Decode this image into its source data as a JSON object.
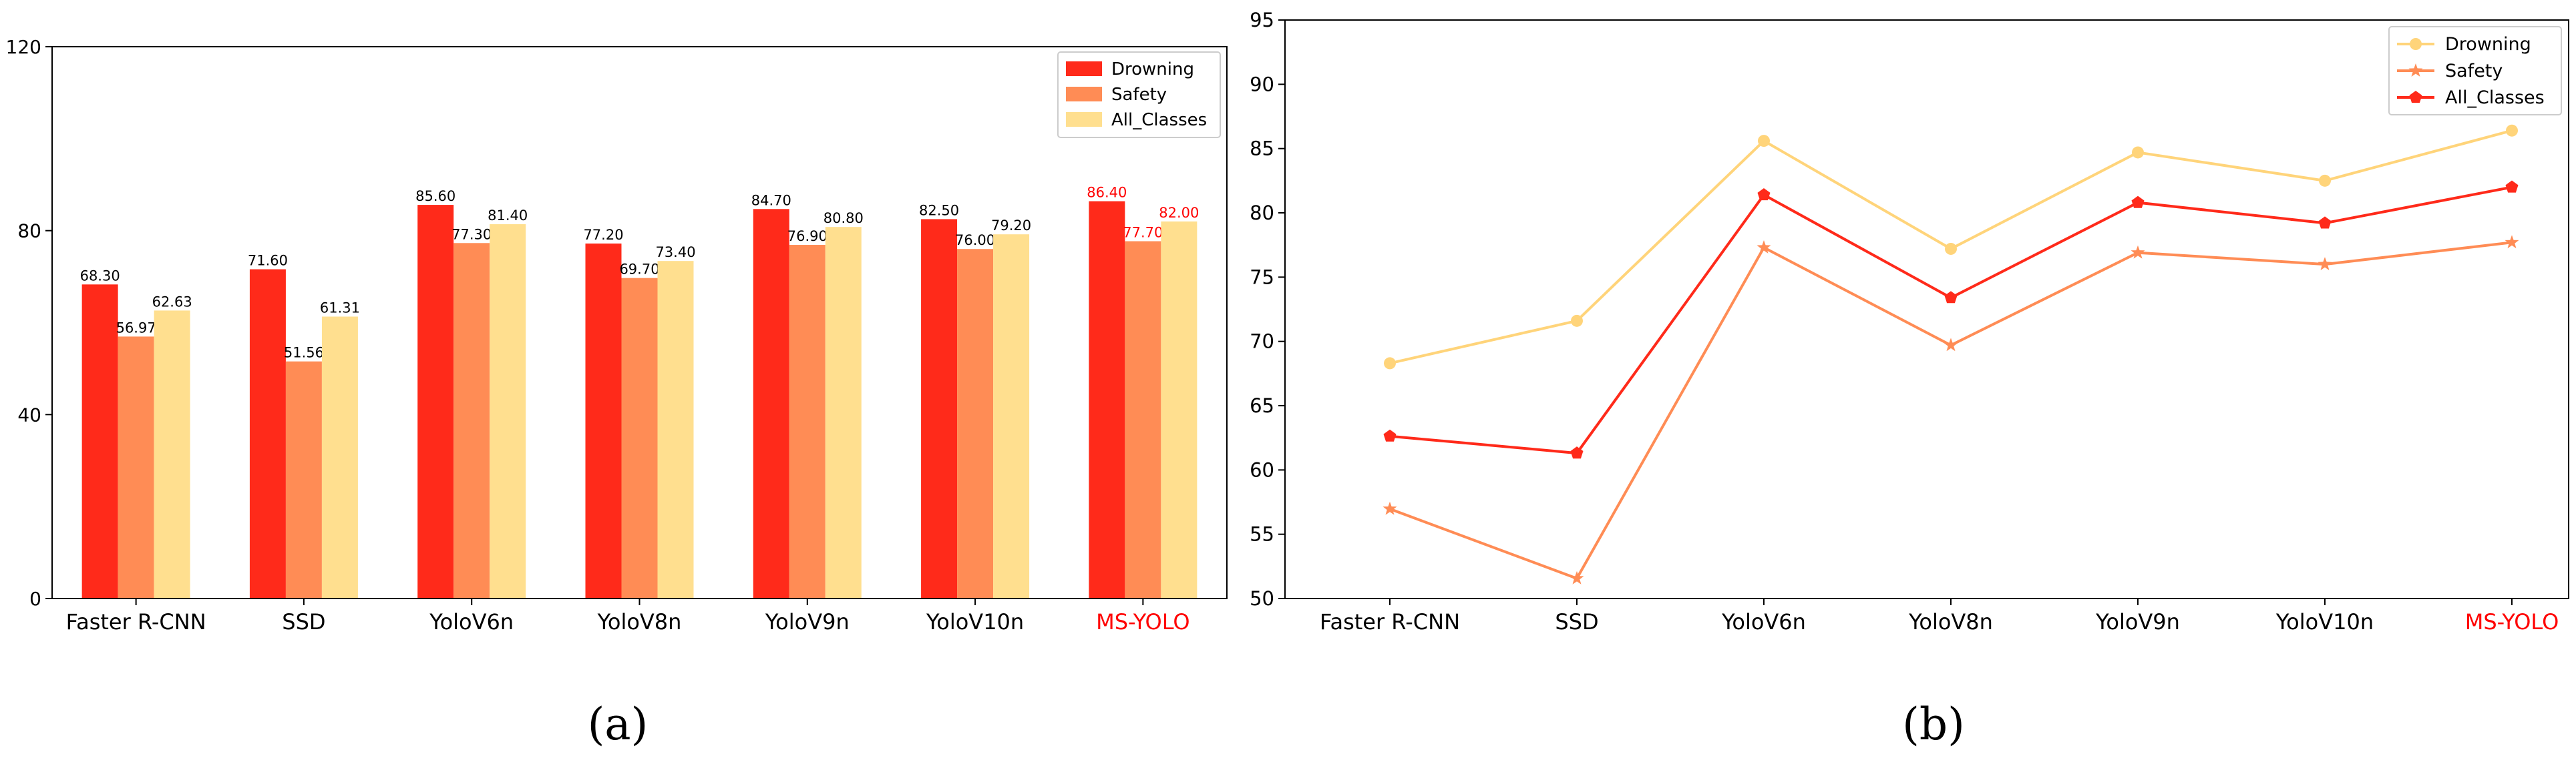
{
  "figure": {
    "panel_labels": [
      "(a)",
      "(b)"
    ],
    "highlight_color": "#ff0000"
  },
  "chart_data": [
    {
      "type": "bar",
      "title": "",
      "xlabel": "",
      "ylabel": "",
      "categories": [
        "Faster R-CNN",
        "SSD",
        "YoloV6n",
        "YoloV8n",
        "YoloV9n",
        "YoloV10n",
        "MS-YOLO"
      ],
      "highlight_category": "MS-YOLO",
      "ylim": [
        0,
        120
      ],
      "yticks": [
        0,
        40,
        80,
        120
      ],
      "grid": false,
      "legend": "top-right",
      "series": [
        {
          "name": "Drowning",
          "color": "#ff2a1a",
          "values": [
            68.3,
            71.6,
            85.6,
            77.2,
            84.7,
            82.5,
            86.4
          ],
          "labels": [
            "68.30",
            "71.60",
            "85.60",
            "77.20",
            "84.70",
            "82.50",
            "86.40"
          ]
        },
        {
          "name": "Safety",
          "color": "#ff8c55",
          "values": [
            56.97,
            51.56,
            77.3,
            69.7,
            76.9,
            76.0,
            77.7
          ],
          "labels": [
            "56.97",
            "51.56",
            "77.30",
            "69.70",
            "76.90",
            "76.00",
            "77.70"
          ]
        },
        {
          "name": "All_Classes",
          "color": "#ffdf8f",
          "values": [
            62.63,
            61.31,
            81.4,
            73.4,
            80.8,
            79.2,
            82.0
          ],
          "labels": [
            "62.63",
            "61.31",
            "81.40",
            "73.40",
            "80.80",
            "79.20",
            "82.00"
          ]
        }
      ]
    },
    {
      "type": "line",
      "title": "",
      "xlabel": "",
      "ylabel": "",
      "categories": [
        "Faster R-CNN",
        "SSD",
        "YoloV6n",
        "YoloV8n",
        "YoloV9n",
        "YoloV10n",
        "MS-YOLO"
      ],
      "highlight_category": "MS-YOLO",
      "ylim": [
        50,
        95
      ],
      "yticks": [
        50,
        55,
        60,
        65,
        70,
        75,
        80,
        85,
        90,
        95
      ],
      "grid": false,
      "legend": "top-right",
      "series": [
        {
          "name": "Drowning",
          "color": "#ffd47a",
          "marker": "circle",
          "values": [
            68.3,
            71.6,
            85.6,
            77.2,
            84.7,
            82.5,
            86.4
          ]
        },
        {
          "name": "Safety",
          "color": "#ff8c55",
          "marker": "star",
          "values": [
            56.97,
            51.56,
            77.3,
            69.7,
            76.9,
            76.0,
            77.7
          ]
        },
        {
          "name": "All_Classes",
          "color": "#ff2a1a",
          "marker": "pentagon",
          "values": [
            62.63,
            61.31,
            81.4,
            73.4,
            80.8,
            79.2,
            82.0
          ]
        }
      ]
    }
  ]
}
